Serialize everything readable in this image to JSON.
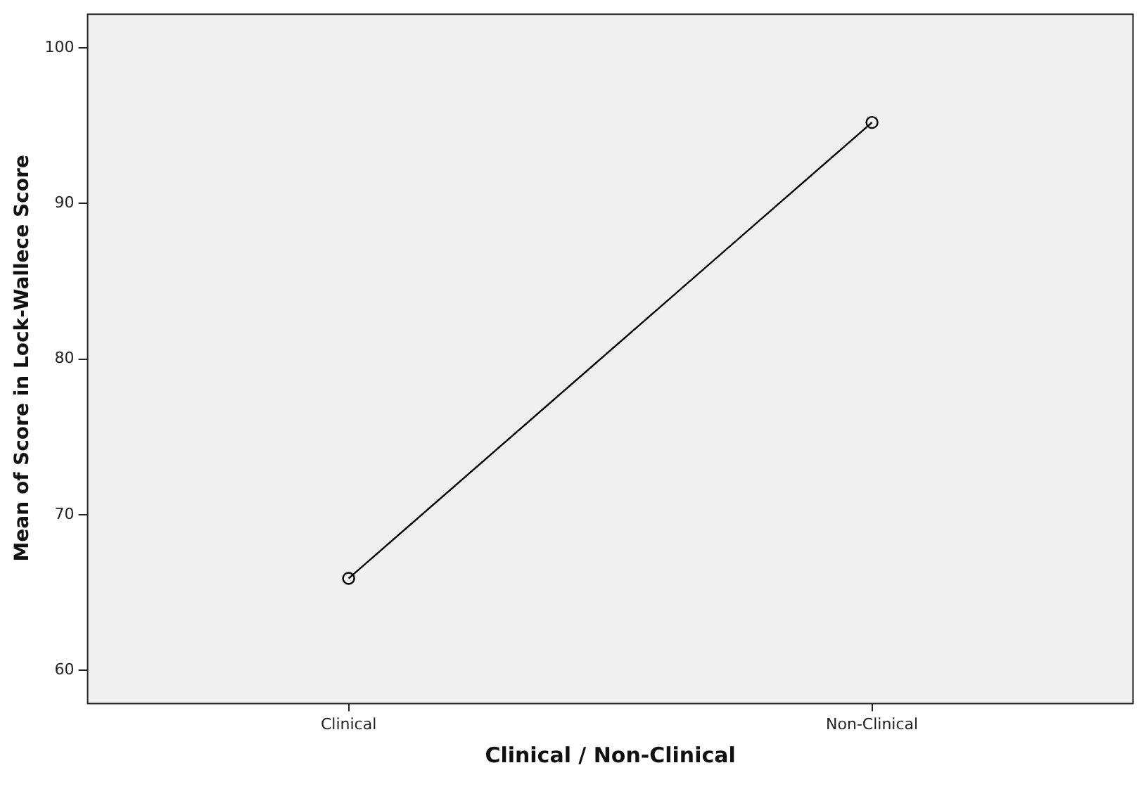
{
  "chart_data": {
    "type": "line",
    "xlabel": "Clinical / Non-Clinical",
    "ylabel": "Mean of Score in Lock-Wallece Score",
    "categories": [
      "Clinical",
      "Non-Clinical"
    ],
    "series": [
      {
        "color": "#000000",
        "values": [
          65.9,
          95.2
        ]
      }
    ],
    "ylim": [
      57.9,
      102.2
    ],
    "yticks": [
      60,
      70,
      80,
      90,
      100
    ],
    "grid": false,
    "legend": false,
    "marker": "circle",
    "line_style": "solid"
  }
}
